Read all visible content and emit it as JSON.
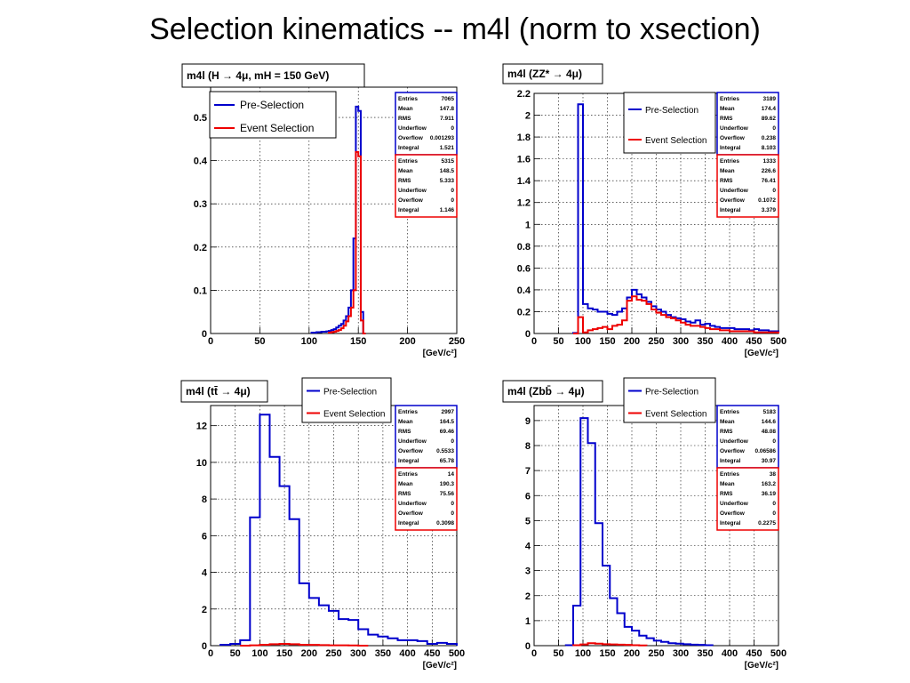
{
  "slide": {
    "title": "Selection kinematics -- m4l (norm to xsection)"
  },
  "colors": {
    "pre": "#0000cc",
    "event": "#ee0000",
    "grid": "#000000"
  },
  "chart_data": [
    {
      "type": "histogram",
      "title": "m4l (H → 4μ, mH = 150 GeV)",
      "xlabel": "[GeV/c²]",
      "xlim": [
        0,
        250
      ],
      "ylim": [
        0,
        0.57
      ],
      "xticks": [
        0,
        50,
        100,
        150,
        200,
        250
      ],
      "yticks": [
        "0",
        "0.1",
        "0.2",
        "0.3",
        "0.4",
        "0.5"
      ],
      "ytick_values": [
        0,
        0.1,
        0.2,
        0.3,
        0.4,
        0.5
      ],
      "grid": true,
      "legend": {
        "entries": [
          "Pre-Selection",
          "Event Selection"
        ],
        "position": "top-left"
      },
      "stats": [
        {
          "series": "Pre-Selection",
          "rows": [
            [
              "Entries",
              "7065"
            ],
            [
              "Mean",
              "147.8"
            ],
            [
              "RMS",
              "7.911"
            ],
            [
              "Underflow",
              "0"
            ],
            [
              "Overflow",
              "0.001293"
            ],
            [
              "Integral",
              "1.521"
            ]
          ]
        },
        {
          "series": "Event Selection",
          "rows": [
            [
              "Entries",
              "5315"
            ],
            [
              "Mean",
              "148.5"
            ],
            [
              "RMS",
              "5.333"
            ],
            [
              "Underflow",
              "0"
            ],
            [
              "Overflow",
              "0"
            ],
            [
              "Integral",
              "1.146"
            ]
          ]
        }
      ],
      "bin_width": 2.5,
      "series": [
        {
          "name": "Pre-Selection",
          "color": "pre",
          "x": [
            102.5,
            105,
            107.5,
            110,
            112.5,
            115,
            117.5,
            120,
            122.5,
            125,
            127.5,
            130,
            132.5,
            135,
            137.5,
            140,
            142.5,
            145,
            147.5,
            150,
            152.5,
            155
          ],
          "values": [
            0.002,
            0.002,
            0.003,
            0.003,
            0.004,
            0.004,
            0.005,
            0.006,
            0.008,
            0.01,
            0.014,
            0.018,
            0.022,
            0.03,
            0.04,
            0.06,
            0.1,
            0.22,
            0.525,
            0.515,
            0.05,
            0.0
          ]
        },
        {
          "name": "Event Selection",
          "color": "event",
          "x": [
            120,
            122.5,
            125,
            127.5,
            130,
            132.5,
            135,
            137.5,
            140,
            142.5,
            145,
            147.5,
            150,
            152.5,
            155
          ],
          "values": [
            0.002,
            0.003,
            0.004,
            0.006,
            0.008,
            0.012,
            0.018,
            0.028,
            0.04,
            0.06,
            0.1,
            0.42,
            0.41,
            0.03,
            0.0
          ]
        }
      ]
    },
    {
      "type": "histogram",
      "title": "m4l (ZZ* → 4μ)",
      "xlabel": "[GeV/c²]",
      "xlim": [
        0,
        500
      ],
      "ylim": [
        0,
        2.2
      ],
      "xticks": [
        0,
        50,
        100,
        150,
        200,
        250,
        300,
        350,
        400,
        450,
        500
      ],
      "yticks": [
        "0",
        "0.2",
        "0.4",
        "0.6",
        "0.8",
        "1",
        "1.2",
        "1.4",
        "1.6",
        "1.8",
        "2",
        "2.2"
      ],
      "ytick_values": [
        0,
        0.2,
        0.4,
        0.6,
        0.8,
        1,
        1.2,
        1.4,
        1.6,
        1.8,
        2,
        2.2
      ],
      "grid": true,
      "legend": {
        "entries": [
          "Pre-Selection",
          "Event Selection"
        ],
        "position": "top-center"
      },
      "stats": [
        {
          "series": "Pre-Selection",
          "rows": [
            [
              "Entries",
              "3189"
            ],
            [
              "Mean",
              "174.4"
            ],
            [
              "RMS",
              "89.62"
            ],
            [
              "Underflow",
              "0"
            ],
            [
              "Overflow",
              "0.238"
            ],
            [
              "Integral",
              "8.103"
            ]
          ]
        },
        {
          "series": "Event Selection",
          "rows": [
            [
              "Entries",
              "1333"
            ],
            [
              "Mean",
              "226.6"
            ],
            [
              "RMS",
              "76.41"
            ],
            [
              "Underflow",
              "0"
            ],
            [
              "Overflow",
              "0.1072"
            ],
            [
              "Integral",
              "3.379"
            ]
          ]
        }
      ],
      "bin_width": 10,
      "series": [
        {
          "name": "Pre-Selection",
          "color": "pre",
          "x": [
            80,
            90,
            100,
            110,
            120,
            130,
            140,
            150,
            160,
            170,
            180,
            190,
            200,
            210,
            220,
            230,
            240,
            250,
            260,
            270,
            280,
            290,
            300,
            310,
            320,
            330,
            340,
            350,
            360,
            370,
            380,
            390,
            400,
            410,
            420,
            430,
            440,
            450,
            460,
            470,
            480,
            490
          ],
          "values": [
            0.005,
            2.1,
            0.27,
            0.23,
            0.22,
            0.2,
            0.2,
            0.18,
            0.17,
            0.2,
            0.23,
            0.33,
            0.4,
            0.36,
            0.33,
            0.29,
            0.25,
            0.22,
            0.2,
            0.17,
            0.15,
            0.14,
            0.13,
            0.11,
            0.1,
            0.12,
            0.08,
            0.09,
            0.07,
            0.06,
            0.05,
            0.05,
            0.05,
            0.04,
            0.04,
            0.04,
            0.03,
            0.04,
            0.03,
            0.03,
            0.02,
            0.02
          ]
        },
        {
          "name": "Event Selection",
          "color": "event",
          "x": [
            80,
            90,
            100,
            110,
            120,
            130,
            140,
            150,
            160,
            170,
            180,
            190,
            200,
            210,
            220,
            230,
            240,
            250,
            260,
            270,
            280,
            290,
            300,
            310,
            320,
            330,
            340,
            350,
            360,
            370,
            380,
            390,
            400,
            410,
            420,
            430,
            440,
            450,
            460,
            470,
            480,
            490
          ],
          "values": [
            0.0,
            0.15,
            0.01,
            0.03,
            0.04,
            0.05,
            0.06,
            0.04,
            0.07,
            0.08,
            0.12,
            0.3,
            0.34,
            0.31,
            0.3,
            0.27,
            0.22,
            0.19,
            0.17,
            0.15,
            0.14,
            0.12,
            0.1,
            0.08,
            0.07,
            0.07,
            0.06,
            0.05,
            0.04,
            0.04,
            0.03,
            0.03,
            0.02,
            0.02,
            0.02,
            0.02,
            0.02,
            0.01,
            0.01,
            0.01,
            0.01,
            0.01
          ]
        }
      ]
    },
    {
      "type": "histogram",
      "title": "m4l (tt̄ → 4μ)",
      "xlabel": "[GeV/c²]",
      "xlim": [
        0,
        500
      ],
      "ylim": [
        0,
        13.1
      ],
      "xticks": [
        0,
        50,
        100,
        150,
        200,
        250,
        300,
        350,
        400,
        450,
        500
      ],
      "yticks": [
        "0",
        "2",
        "4",
        "6",
        "8",
        "10",
        "12"
      ],
      "ytick_values": [
        0,
        2,
        4,
        6,
        8,
        10,
        12
      ],
      "grid": true,
      "legend": {
        "entries": [
          "Pre-Selection",
          "Event Selection"
        ],
        "position": "top-center"
      },
      "stats": [
        {
          "series": "Pre-Selection",
          "rows": [
            [
              "Entries",
              "2997"
            ],
            [
              "Mean",
              "164.5"
            ],
            [
              "RMS",
              "69.46"
            ],
            [
              "Underflow",
              "0"
            ],
            [
              "Overflow",
              "0.5533"
            ],
            [
              "Integral",
              "65.78"
            ]
          ]
        },
        {
          "series": "Event Selection",
          "rows": [
            [
              "Entries",
              "14"
            ],
            [
              "Mean",
              "190.3"
            ],
            [
              "RMS",
              "75.56"
            ],
            [
              "Underflow",
              "0"
            ],
            [
              "Overflow",
              "0"
            ],
            [
              "Integral",
              "0.3098"
            ]
          ]
        }
      ],
      "bin_width": 20,
      "series": [
        {
          "name": "Pre-Selection",
          "color": "pre",
          "x": [
            20,
            40,
            60,
            80,
            100,
            120,
            140,
            160,
            180,
            200,
            220,
            240,
            260,
            280,
            300,
            320,
            340,
            360,
            380,
            400,
            420,
            440,
            460,
            480
          ],
          "values": [
            0.05,
            0.1,
            0.3,
            7.0,
            12.6,
            10.3,
            8.7,
            6.9,
            3.4,
            2.6,
            2.2,
            1.9,
            1.45,
            1.4,
            0.9,
            0.6,
            0.5,
            0.4,
            0.3,
            0.3,
            0.25,
            0.1,
            0.15,
            0.1
          ]
        },
        {
          "name": "Event Selection",
          "color": "event",
          "x": [
            60,
            80,
            100,
            120,
            140,
            160,
            180,
            200,
            220,
            240,
            260,
            280,
            300
          ],
          "values": [
            0.0,
            0.02,
            0.05,
            0.08,
            0.1,
            0.08,
            0.05,
            0.04,
            0.03,
            0.02,
            0.02,
            0.01,
            0.0
          ]
        }
      ]
    },
    {
      "type": "histogram",
      "title": "m4l (Zbb̄ → 4μ)",
      "xlabel": "[GeV/c²]",
      "xlim": [
        0,
        500
      ],
      "ylim": [
        0,
        9.6
      ],
      "xticks": [
        0,
        50,
        100,
        150,
        200,
        250,
        300,
        350,
        400,
        450,
        500
      ],
      "yticks": [
        "0",
        "1",
        "2",
        "3",
        "4",
        "5",
        "6",
        "7",
        "8",
        "9"
      ],
      "ytick_values": [
        0,
        1,
        2,
        3,
        4,
        5,
        6,
        7,
        8,
        9
      ],
      "grid": true,
      "legend": {
        "entries": [
          "Pre-Selection",
          "Event Selection"
        ],
        "position": "top-center"
      },
      "stats": [
        {
          "series": "Pre-Selection",
          "rows": [
            [
              "Entries",
              "5183"
            ],
            [
              "Mean",
              "144.6"
            ],
            [
              "RMS",
              "48.08"
            ],
            [
              "Underflow",
              "0"
            ],
            [
              "Overflow",
              "0.06586"
            ],
            [
              "Integral",
              "30.97"
            ]
          ]
        },
        {
          "series": "Event Selection",
          "rows": [
            [
              "Entries",
              "38"
            ],
            [
              "Mean",
              "163.2"
            ],
            [
              "RMS",
              "36.19"
            ],
            [
              "Underflow",
              "0"
            ],
            [
              "Overflow",
              "0"
            ],
            [
              "Integral",
              "0.2275"
            ]
          ]
        }
      ],
      "bin_width": 15,
      "series": [
        {
          "name": "Pre-Selection",
          "color": "pre",
          "x": [
            65,
            80,
            95,
            110,
            125,
            140,
            155,
            170,
            185,
            200,
            215,
            230,
            245,
            260,
            275,
            290,
            305,
            320,
            335,
            350
          ],
          "values": [
            0.02,
            1.6,
            9.1,
            8.1,
            4.9,
            3.2,
            1.9,
            1.3,
            0.75,
            0.6,
            0.4,
            0.3,
            0.2,
            0.15,
            0.1,
            0.08,
            0.06,
            0.04,
            0.03,
            0.02
          ]
        },
        {
          "name": "Event Selection",
          "color": "event",
          "x": [
            80,
            95,
            110,
            125,
            140,
            155,
            170,
            185,
            200,
            215
          ],
          "values": [
            0.02,
            0.05,
            0.1,
            0.08,
            0.06,
            0.05,
            0.04,
            0.03,
            0.02,
            0.01
          ]
        }
      ]
    }
  ]
}
